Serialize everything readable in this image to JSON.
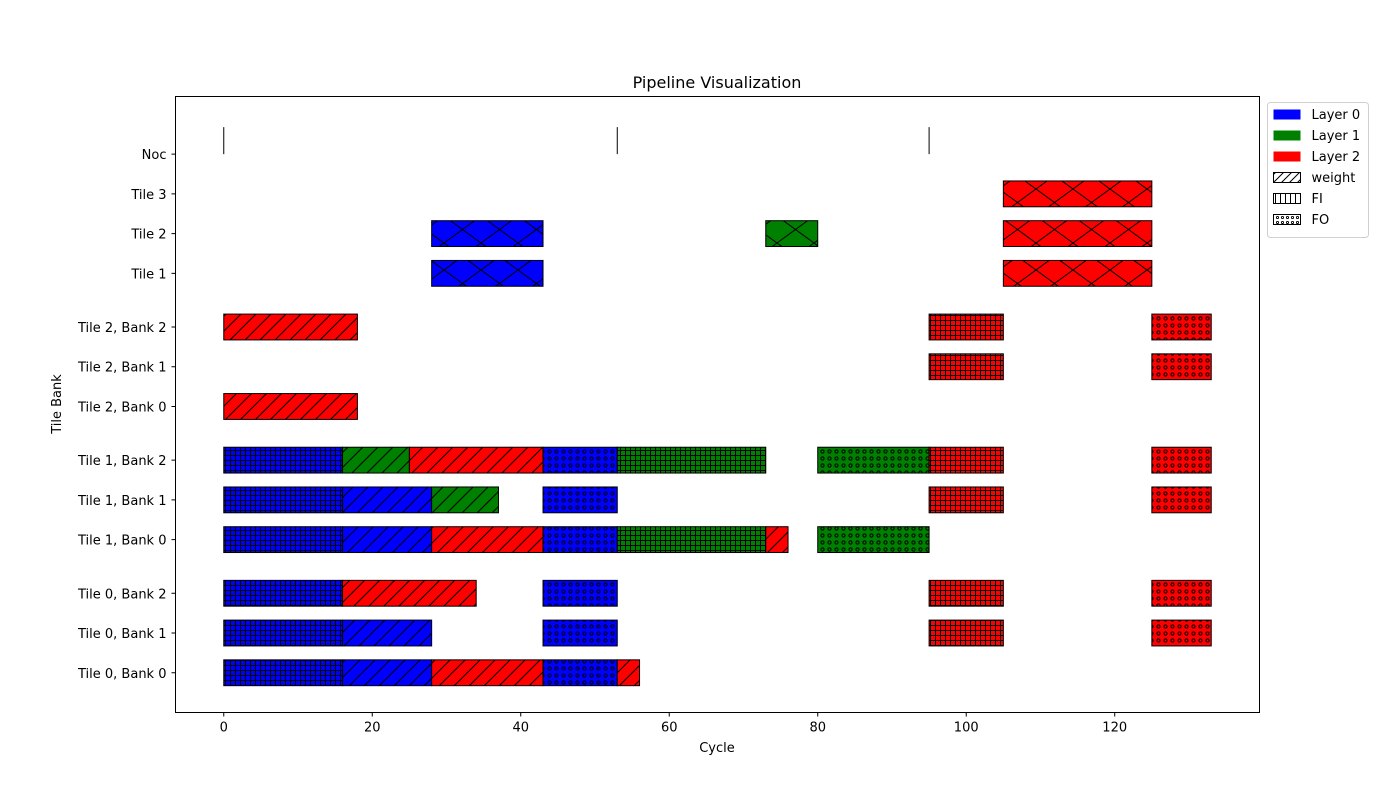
{
  "chart_data": {
    "type": "gantt",
    "title": "Pipeline Visualization",
    "xlabel": "Cycle",
    "ylabel": "Tile Bank",
    "xlim": [
      -6.5,
      139.5
    ],
    "xticks": [
      0,
      20,
      40,
      60,
      80,
      100,
      120
    ],
    "rows": [
      {
        "label": "Tile 0, Bank 0",
        "y": 0
      },
      {
        "label": "Tile 0, Bank 1",
        "y": 1
      },
      {
        "label": "Tile 0, Bank 2",
        "y": 2
      },
      {
        "label": "Tile 1, Bank 0",
        "y": 3.35
      },
      {
        "label": "Tile 1, Bank 1",
        "y": 4.35
      },
      {
        "label": "Tile 1, Bank 2",
        "y": 5.35
      },
      {
        "label": "Tile 2, Bank 0",
        "y": 6.7
      },
      {
        "label": "Tile 2, Bank 1",
        "y": 7.7
      },
      {
        "label": "Tile 2, Bank 2",
        "y": 8.7
      },
      {
        "label": "Tile 1",
        "y": 10.05
      },
      {
        "label": "Tile 2",
        "y": 11.05
      },
      {
        "label": "Tile 3",
        "y": 12.05
      },
      {
        "label": "Noc",
        "y": 13.05
      }
    ],
    "ylim": [
      -1,
      14.5
    ],
    "layer_colors": {
      "0": "#0000ff",
      "1": "#008000",
      "2": "#ff0000"
    },
    "legend": {
      "placement": "outside-top-right",
      "entries": [
        {
          "label": "Layer 0",
          "kind": "color",
          "color": "#0000ff"
        },
        {
          "label": "Layer 1",
          "kind": "color",
          "color": "#008000"
        },
        {
          "label": "Layer 2",
          "kind": "color",
          "color": "#ff0000"
        },
        {
          "label": "weight",
          "kind": "hatch",
          "hatch": "weight"
        },
        {
          "label": "FI",
          "kind": "hatch",
          "hatch": "FI"
        },
        {
          "label": "FO",
          "kind": "hatch",
          "hatch": "FO"
        }
      ]
    },
    "bars": [
      {
        "row": "Tile 0, Bank 0",
        "start": 0,
        "end": 16,
        "layer": 0,
        "kind": "FI"
      },
      {
        "row": "Tile 0, Bank 0",
        "start": 16,
        "end": 28,
        "layer": 0,
        "kind": "weight"
      },
      {
        "row": "Tile 0, Bank 0",
        "start": 28,
        "end": 43,
        "layer": 2,
        "kind": "weight"
      },
      {
        "row": "Tile 0, Bank 0",
        "start": 43,
        "end": 53,
        "layer": 0,
        "kind": "FO"
      },
      {
        "row": "Tile 0, Bank 0",
        "start": 53,
        "end": 56,
        "layer": 2,
        "kind": "weight"
      },
      {
        "row": "Tile 0, Bank 1",
        "start": 0,
        "end": 16,
        "layer": 0,
        "kind": "FI"
      },
      {
        "row": "Tile 0, Bank 1",
        "start": 16,
        "end": 28,
        "layer": 0,
        "kind": "weight"
      },
      {
        "row": "Tile 0, Bank 1",
        "start": 43,
        "end": 53,
        "layer": 0,
        "kind": "FO"
      },
      {
        "row": "Tile 0, Bank 1",
        "start": 95,
        "end": 105,
        "layer": 2,
        "kind": "FI"
      },
      {
        "row": "Tile 0, Bank 1",
        "start": 125,
        "end": 133,
        "layer": 2,
        "kind": "FO"
      },
      {
        "row": "Tile 0, Bank 2",
        "start": 0,
        "end": 16,
        "layer": 0,
        "kind": "FI"
      },
      {
        "row": "Tile 0, Bank 2",
        "start": 16,
        "end": 34,
        "layer": 2,
        "kind": "weight"
      },
      {
        "row": "Tile 0, Bank 2",
        "start": 43,
        "end": 53,
        "layer": 0,
        "kind": "FO"
      },
      {
        "row": "Tile 0, Bank 2",
        "start": 95,
        "end": 105,
        "layer": 2,
        "kind": "FI"
      },
      {
        "row": "Tile 0, Bank 2",
        "start": 125,
        "end": 133,
        "layer": 2,
        "kind": "FO"
      },
      {
        "row": "Tile 1, Bank 0",
        "start": 0,
        "end": 16,
        "layer": 0,
        "kind": "FI"
      },
      {
        "row": "Tile 1, Bank 0",
        "start": 16,
        "end": 28,
        "layer": 0,
        "kind": "weight"
      },
      {
        "row": "Tile 1, Bank 0",
        "start": 28,
        "end": 43,
        "layer": 2,
        "kind": "weight"
      },
      {
        "row": "Tile 1, Bank 0",
        "start": 43,
        "end": 53,
        "layer": 0,
        "kind": "FO"
      },
      {
        "row": "Tile 1, Bank 0",
        "start": 53,
        "end": 73,
        "layer": 1,
        "kind": "FI"
      },
      {
        "row": "Tile 1, Bank 0",
        "start": 73,
        "end": 76,
        "layer": 2,
        "kind": "weight"
      },
      {
        "row": "Tile 1, Bank 0",
        "start": 80,
        "end": 95,
        "layer": 1,
        "kind": "FO"
      },
      {
        "row": "Tile 1, Bank 1",
        "start": 0,
        "end": 16,
        "layer": 0,
        "kind": "FI"
      },
      {
        "row": "Tile 1, Bank 1",
        "start": 16,
        "end": 28,
        "layer": 0,
        "kind": "weight"
      },
      {
        "row": "Tile 1, Bank 1",
        "start": 28,
        "end": 37,
        "layer": 1,
        "kind": "weight"
      },
      {
        "row": "Tile 1, Bank 1",
        "start": 43,
        "end": 53,
        "layer": 0,
        "kind": "FO"
      },
      {
        "row": "Tile 1, Bank 1",
        "start": 95,
        "end": 105,
        "layer": 2,
        "kind": "FI"
      },
      {
        "row": "Tile 1, Bank 1",
        "start": 125,
        "end": 133,
        "layer": 2,
        "kind": "FO"
      },
      {
        "row": "Tile 1, Bank 2",
        "start": 0,
        "end": 16,
        "layer": 0,
        "kind": "FI"
      },
      {
        "row": "Tile 1, Bank 2",
        "start": 16,
        "end": 25,
        "layer": 1,
        "kind": "weight"
      },
      {
        "row": "Tile 1, Bank 2",
        "start": 25,
        "end": 43,
        "layer": 2,
        "kind": "weight"
      },
      {
        "row": "Tile 1, Bank 2",
        "start": 43,
        "end": 53,
        "layer": 0,
        "kind": "FO"
      },
      {
        "row": "Tile 1, Bank 2",
        "start": 53,
        "end": 73,
        "layer": 1,
        "kind": "FI"
      },
      {
        "row": "Tile 1, Bank 2",
        "start": 80,
        "end": 95,
        "layer": 1,
        "kind": "FO"
      },
      {
        "row": "Tile 1, Bank 2",
        "start": 95,
        "end": 105,
        "layer": 2,
        "kind": "FI"
      },
      {
        "row": "Tile 1, Bank 2",
        "start": 125,
        "end": 133,
        "layer": 2,
        "kind": "FO"
      },
      {
        "row": "Tile 2, Bank 0",
        "start": 0,
        "end": 18,
        "layer": 2,
        "kind": "weight"
      },
      {
        "row": "Tile 2, Bank 1",
        "start": 95,
        "end": 105,
        "layer": 2,
        "kind": "FI"
      },
      {
        "row": "Tile 2, Bank 1",
        "start": 125,
        "end": 133,
        "layer": 2,
        "kind": "FO"
      },
      {
        "row": "Tile 2, Bank 2",
        "start": 0,
        "end": 18,
        "layer": 2,
        "kind": "weight"
      },
      {
        "row": "Tile 2, Bank 2",
        "start": 95,
        "end": 105,
        "layer": 2,
        "kind": "FI"
      },
      {
        "row": "Tile 2, Bank 2",
        "start": 125,
        "end": 133,
        "layer": 2,
        "kind": "FO"
      },
      {
        "row": "Tile 1",
        "start": 28,
        "end": 43,
        "layer": 0,
        "kind": "compute"
      },
      {
        "row": "Tile 1",
        "start": 105,
        "end": 125,
        "layer": 2,
        "kind": "compute"
      },
      {
        "row": "Tile 2",
        "start": 28,
        "end": 43,
        "layer": 0,
        "kind": "compute"
      },
      {
        "row": "Tile 2",
        "start": 73,
        "end": 80,
        "layer": 1,
        "kind": "compute"
      },
      {
        "row": "Tile 2",
        "start": 105,
        "end": 125,
        "layer": 2,
        "kind": "compute"
      },
      {
        "row": "Tile 3",
        "start": 105,
        "end": 125,
        "layer": 2,
        "kind": "compute"
      }
    ],
    "noc_events": [
      0,
      53,
      95
    ]
  }
}
